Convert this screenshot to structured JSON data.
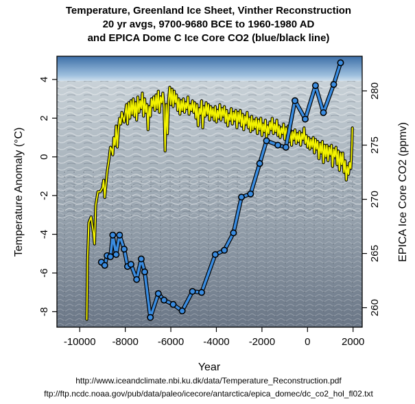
{
  "chart_data": {
    "type": "line",
    "title_lines": [
      "Temperature, Greenland Ice Sheet, Vinther Reconstruction",
      "20 yr avgs, 9700-9680 BCE to 1960-1980 AD",
      "and EPICA Dome C Ice Core CO2 (blue/black line)"
    ],
    "xlabel": "Year",
    "ylabel_left": "Temperature Anomaly (°C)",
    "ylabel_right": "EPICA Ice Core CO2 (ppmv)",
    "xlim": [
      -11000,
      2400
    ],
    "ylim_left": [
      -8.8,
      5.2
    ],
    "ylim_right": [
      258.2,
      283.2
    ],
    "x_ticks": [
      -10000,
      -8000,
      -6000,
      -4000,
      -2000,
      0,
      2000
    ],
    "x_tick_labels": [
      "-10000",
      "-8000",
      "-6000",
      "-4000",
      "-2000",
      "0",
      "2000"
    ],
    "y_left_ticks": [
      4,
      2,
      0,
      -2,
      -4,
      -6,
      -8
    ],
    "y_left_tick_labels": [
      "4",
      "2",
      "0",
      "-2",
      "-4",
      "-6",
      "-8"
    ],
    "y_right_ticks": [
      280,
      275,
      270,
      265,
      260
    ],
    "y_right_tick_labels": [
      "280",
      "275",
      "270",
      "265",
      "260"
    ],
    "background_image": "greenland-ice-sheet-photo",
    "series": [
      {
        "axis": "left",
        "color": "#f2f200",
        "outline": "#000000",
        "points": [
          [
            -9690,
            -8.4
          ],
          [
            -9660,
            -5.5
          ],
          [
            -9600,
            -3.4
          ],
          [
            -9500,
            -3.1
          ],
          [
            -9400,
            -3.9
          ],
          [
            -9350,
            -4.5
          ],
          [
            -9300,
            -2.5
          ],
          [
            -9200,
            -1.8
          ],
          [
            -9100,
            -1.8
          ],
          [
            -9000,
            -1.6
          ],
          [
            -8950,
            -1.2
          ],
          [
            -8900,
            -2.1
          ],
          [
            -8800,
            -0.8
          ],
          [
            -8700,
            0.0
          ],
          [
            -8650,
            0.5
          ],
          [
            -8600,
            0.4
          ],
          [
            -8550,
            0.1
          ],
          [
            -8500,
            1.0
          ],
          [
            -8450,
            0.6
          ],
          [
            -8400,
            1.6
          ],
          [
            -8350,
            0.5
          ],
          [
            -8300,
            1.4
          ],
          [
            -8250,
            2.0
          ],
          [
            -8200,
            1.7
          ],
          [
            -8150,
            2.3
          ],
          [
            -8050,
            1.8
          ],
          [
            -7950,
            2.7
          ],
          [
            -7900,
            1.7
          ],
          [
            -7850,
            2.8
          ],
          [
            -7800,
            2.0
          ],
          [
            -7750,
            2.9
          ],
          [
            -7700,
            2.2
          ],
          [
            -7650,
            3.0
          ],
          [
            -7600,
            2.1
          ],
          [
            -7550,
            2.8
          ],
          [
            -7500,
            1.9
          ],
          [
            -7450,
            3.1
          ],
          [
            -7400,
            2.3
          ],
          [
            -7350,
            2.9
          ],
          [
            -7300,
            2.5
          ],
          [
            -7250,
            3.3
          ],
          [
            -7200,
            2.1
          ],
          [
            -7150,
            3.0
          ],
          [
            -7100,
            2.3
          ],
          [
            -7050,
            2.7
          ],
          [
            -7000,
            1.4
          ],
          [
            -6950,
            2.6
          ],
          [
            -6900,
            2.1
          ],
          [
            -6850,
            3.0
          ],
          [
            -6800,
            2.6
          ],
          [
            -6750,
            3.1
          ],
          [
            -6700,
            2.4
          ],
          [
            -6650,
            3.2
          ],
          [
            -6600,
            2.5
          ],
          [
            -6550,
            3.4
          ],
          [
            -6500,
            2.3
          ],
          [
            -6450,
            3.1
          ],
          [
            -6400,
            2.8
          ],
          [
            -6350,
            3.3
          ],
          [
            -6300,
            2.6
          ],
          [
            -6250,
            0.3
          ],
          [
            -6200,
            2.7
          ],
          [
            -6150,
            1.2
          ],
          [
            -6100,
            2.9
          ],
          [
            -6050,
            3.6
          ],
          [
            -6000,
            2.7
          ],
          [
            -5950,
            3.5
          ],
          [
            -5900,
            2.6
          ],
          [
            -5850,
            3.4
          ],
          [
            -5800,
            2.8
          ],
          [
            -5750,
            3.2
          ],
          [
            -5700,
            2.4
          ],
          [
            -5650,
            3.0
          ],
          [
            -5600,
            2.2
          ],
          [
            -5550,
            2.9
          ],
          [
            -5500,
            2.4
          ],
          [
            -5450,
            3.0
          ],
          [
            -5400,
            2.3
          ],
          [
            -5350,
            2.8
          ],
          [
            -5300,
            2.5
          ],
          [
            -5250,
            3.1
          ],
          [
            -5200,
            2.2
          ],
          [
            -5150,
            2.7
          ],
          [
            -5100,
            2.4
          ],
          [
            -5050,
            2.9
          ],
          [
            -5000,
            2.3
          ],
          [
            -4950,
            2.8
          ],
          [
            -4900,
            2.0
          ],
          [
            -4850,
            2.7
          ],
          [
            -4800,
            1.6
          ],
          [
            -4750,
            2.5
          ],
          [
            -4700,
            2.2
          ],
          [
            -4650,
            2.9
          ],
          [
            -4600,
            1.5
          ],
          [
            -4550,
            2.6
          ],
          [
            -4500,
            2.1
          ],
          [
            -4450,
            2.8
          ],
          [
            -4400,
            2.2
          ],
          [
            -4350,
            2.7
          ],
          [
            -4300,
            1.9
          ],
          [
            -4250,
            2.6
          ],
          [
            -4200,
            2.1
          ],
          [
            -4150,
            2.5
          ],
          [
            -4100,
            1.9
          ],
          [
            -4050,
            2.6
          ],
          [
            -4000,
            1.8
          ],
          [
            -3950,
            2.4
          ],
          [
            -3900,
            2.0
          ],
          [
            -3850,
            2.7
          ],
          [
            -3800,
            1.9
          ],
          [
            -3750,
            2.5
          ],
          [
            -3700,
            2.1
          ],
          [
            -3650,
            2.6
          ],
          [
            -3600,
            1.8
          ],
          [
            -3550,
            2.4
          ],
          [
            -3500,
            1.6
          ],
          [
            -3450,
            2.2
          ],
          [
            -3400,
            1.9
          ],
          [
            -3350,
            2.5
          ],
          [
            -3300,
            1.7
          ],
          [
            -3250,
            2.3
          ],
          [
            -3200,
            1.9
          ],
          [
            -3150,
            2.4
          ],
          [
            -3100,
            1.5
          ],
          [
            -3050,
            2.3
          ],
          [
            -3000,
            1.8
          ],
          [
            -2950,
            2.4
          ],
          [
            -2900,
            1.6
          ],
          [
            -2850,
            2.2
          ],
          [
            -2800,
            1.4
          ],
          [
            -2750,
            2.1
          ],
          [
            -2700,
            1.7
          ],
          [
            -2650,
            2.3
          ],
          [
            -2600,
            1.5
          ],
          [
            -2550,
            2.0
          ],
          [
            -2500,
            1.3
          ],
          [
            -2450,
            2.1
          ],
          [
            -2400,
            1.4
          ],
          [
            -2350,
            1.9
          ],
          [
            -2300,
            1.5
          ],
          [
            -2250,
            2.0
          ],
          [
            -2200,
            1.2
          ],
          [
            -2150,
            1.9
          ],
          [
            -2100,
            1.4
          ],
          [
            -2050,
            2.0
          ],
          [
            -2000,
            1.1
          ],
          [
            -1950,
            1.7
          ],
          [
            -1900,
            1.3
          ],
          [
            -1850,
            1.9
          ],
          [
            -1800,
            1.0
          ],
          [
            -1750,
            1.6
          ],
          [
            -1700,
            1.2
          ],
          [
            -1650,
            1.8
          ],
          [
            -1600,
            1.4
          ],
          [
            -1550,
            2.0
          ],
          [
            -1500,
            1.2
          ],
          [
            -1450,
            1.7
          ],
          [
            -1400,
            1.3
          ],
          [
            -1350,
            1.9
          ],
          [
            -1300,
            1.1
          ],
          [
            -1250,
            1.6
          ],
          [
            -1200,
            1.0
          ],
          [
            -1150,
            1.5
          ],
          [
            -1100,
            1.2
          ],
          [
            -1050,
            1.7
          ],
          [
            -1000,
            0.9
          ],
          [
            -950,
            1.5
          ],
          [
            -900,
            1.1
          ],
          [
            -850,
            1.6
          ],
          [
            -800,
            0.8
          ],
          [
            -750,
            1.4
          ],
          [
            -700,
            0.6
          ],
          [
            -650,
            1.3
          ],
          [
            -600,
            0.9
          ],
          [
            -550,
            1.4
          ],
          [
            -500,
            0.7
          ],
          [
            -450,
            1.2
          ],
          [
            -400,
            0.8
          ],
          [
            -350,
            1.3
          ],
          [
            -300,
            0.6
          ],
          [
            -250,
            1.2
          ],
          [
            -200,
            0.9
          ],
          [
            -150,
            1.5
          ],
          [
            -100,
            0.7
          ],
          [
            -50,
            1.1
          ],
          [
            0,
            0.5
          ],
          [
            50,
            1.0
          ],
          [
            100,
            0.4
          ],
          [
            150,
            0.9
          ],
          [
            200,
            0.5
          ],
          [
            250,
            1.0
          ],
          [
            300,
            0.2
          ],
          [
            350,
            0.9
          ],
          [
            400,
            0.4
          ],
          [
            450,
            0.8
          ],
          [
            500,
            -0.1
          ],
          [
            550,
            0.7
          ],
          [
            600,
            0.2
          ],
          [
            650,
            0.8
          ],
          [
            700,
            -0.3
          ],
          [
            750,
            0.6
          ],
          [
            800,
            0.0
          ],
          [
            850,
            0.6
          ],
          [
            900,
            -0.2
          ],
          [
            950,
            0.5
          ],
          [
            1000,
            0.1
          ],
          [
            1050,
            0.6
          ],
          [
            1100,
            -0.5
          ],
          [
            1150,
            0.4
          ],
          [
            1200,
            0.0
          ],
          [
            1250,
            0.5
          ],
          [
            1300,
            -0.4
          ],
          [
            1350,
            0.3
          ],
          [
            1400,
            -0.7
          ],
          [
            1450,
            0.2
          ],
          [
            1500,
            -0.4
          ],
          [
            1550,
            0.2
          ],
          [
            1600,
            -0.8
          ],
          [
            1650,
            -0.2
          ],
          [
            1700,
            -1.2
          ],
          [
            1750,
            -0.5
          ],
          [
            1800,
            -0.9
          ],
          [
            1850,
            -0.3
          ],
          [
            1900,
            -0.6
          ],
          [
            1950,
            0.6
          ],
          [
            1970,
            1.5
          ]
        ]
      },
      {
        "axis": "right",
        "color": "#3a8ce0",
        "outline": "#000000",
        "points": [
          [
            -9050,
            264.2
          ],
          [
            -8900,
            263.9
          ],
          [
            -8800,
            264.8
          ],
          [
            -8650,
            264.7
          ],
          [
            -8550,
            266.7
          ],
          [
            -8400,
            264.9
          ],
          [
            -8250,
            266.7
          ],
          [
            -8050,
            265.4
          ],
          [
            -7900,
            263.8
          ],
          [
            -7750,
            264.0
          ],
          [
            -7500,
            262.6
          ],
          [
            -7300,
            264.5
          ],
          [
            -7150,
            263.3
          ],
          [
            -6900,
            259.1
          ],
          [
            -6550,
            261.3
          ],
          [
            -6300,
            260.7
          ],
          [
            -5900,
            260.3
          ],
          [
            -5500,
            259.7
          ],
          [
            -5050,
            261.5
          ],
          [
            -4650,
            261.4
          ],
          [
            -4050,
            264.9
          ],
          [
            -3650,
            265.3
          ],
          [
            -3250,
            266.9
          ],
          [
            -2900,
            270.2
          ],
          [
            -2500,
            270.5
          ],
          [
            -2100,
            273.3
          ],
          [
            -1800,
            275.4
          ],
          [
            -1300,
            275.0
          ],
          [
            -950,
            274.8
          ],
          [
            -550,
            279.1
          ],
          [
            -100,
            277.4
          ],
          [
            350,
            280.5
          ],
          [
            700,
            278.0
          ],
          [
            1150,
            280.6
          ],
          [
            1450,
            282.6
          ]
        ]
      }
    ]
  },
  "sources": [
    "http://www.iceandclimate.nbi.ku.dk/data/Temperature_Reconstruction.pdf",
    "ftp://ftp.ncdc.noaa.gov/pub/data/paleo/icecore/antarctica/epica_domec/dc_co2_hol_fl02.txt"
  ]
}
